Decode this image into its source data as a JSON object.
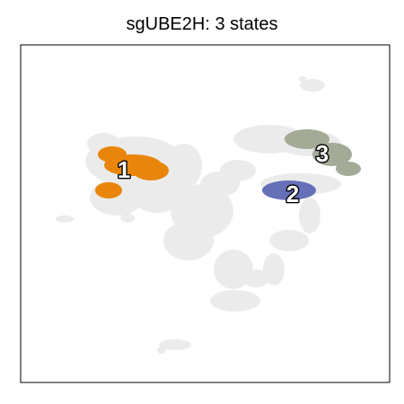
{
  "chart_data": {
    "type": "scatter",
    "title": "sgUBE2H: 3 states",
    "xlabel": "",
    "ylabel": "",
    "grid": false,
    "axis_ticks": false,
    "background_color": "#dcdcdc",
    "states": [
      {
        "label": "1",
        "color": "#e8850a"
      },
      {
        "label": "2",
        "color": "#6570b8"
      },
      {
        "label": "3",
        "color": "#a3aa96"
      }
    ]
  }
}
